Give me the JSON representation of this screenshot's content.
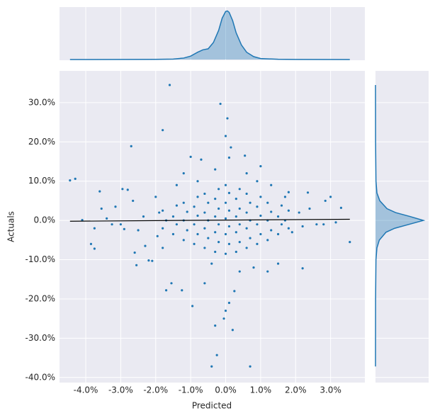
{
  "chart_data": {
    "type": "scatter",
    "xlabel": "Predicted",
    "ylabel": "Actuals",
    "xlim": [
      -4.75,
      3.98
    ],
    "ylim": [
      -41.3,
      38.1
    ],
    "xticks": [
      {
        "value": -4,
        "label": "-4.0%"
      },
      {
        "value": -3,
        "label": "-3.0%"
      },
      {
        "value": -2,
        "label": "-2.0%"
      },
      {
        "value": -1,
        "label": "-1.0%"
      },
      {
        "value": 0,
        "label": "0.0%"
      },
      {
        "value": 1,
        "label": "1.0%"
      },
      {
        "value": 2,
        "label": "2.0%"
      },
      {
        "value": 3,
        "label": "3.0%"
      }
    ],
    "yticks": [
      {
        "value": 30,
        "label": "30.0%"
      },
      {
        "value": 20,
        "label": "20.0%"
      },
      {
        "value": 10,
        "label": "10.0%"
      },
      {
        "value": 0,
        "label": "0.0%"
      },
      {
        "value": -10,
        "label": "-10.0%"
      },
      {
        "value": -20,
        "label": "-20.0%"
      },
      {
        "value": -30,
        "label": "-30.0%"
      },
      {
        "value": -40,
        "label": "-40.0%"
      }
    ],
    "grid": true,
    "color": "#1f77b4",
    "points": {
      "x": [
        -4.45,
        -4.3,
        -4.1,
        -3.85,
        -3.75,
        -3.75,
        -3.6,
        -3.55,
        -3.4,
        -3.25,
        -3.15,
        -3.0,
        -2.95,
        -2.8,
        -2.7,
        -2.65,
        -2.6,
        -2.55,
        -2.3,
        -2.2,
        -2.1,
        -2.0,
        -1.95,
        -1.8,
        -1.7,
        -1.6,
        -1.55,
        -1.25,
        -1.2,
        -1.0,
        -0.95,
        -0.7,
        -0.6,
        -0.4,
        -0.3,
        -0.4,
        -0.25,
        -0.15,
        -0.05,
        0.0,
        0.0,
        0.05,
        0.1,
        0.1,
        0.15,
        0.2,
        0.25,
        0.4,
        0.55,
        0.7,
        0.8,
        1.0,
        1.2,
        1.5,
        1.8,
        2.2,
        2.35,
        2.4,
        2.6,
        2.8,
        2.85,
        3.0,
        3.15,
        3.3,
        3.55,
        -2.5,
        -2.9,
        -2.35,
        -1.9,
        2.1,
        2.2,
        1.9,
        -1.8,
        1.7,
        -1.4,
        1.3,
        0.6,
        -0.3,
        -0.8,
        0.9,
        -1.8,
        -1.7,
        -1.8,
        -1.5,
        -1.4,
        -1.5,
        -1.4,
        -1.2,
        -1.1,
        -1.2,
        -1.1,
        -1.2,
        -0.9,
        -0.8,
        -0.9,
        -0.8,
        -0.9,
        -0.8,
        -0.6,
        -0.5,
        -0.6,
        -0.5,
        -0.6,
        -0.5,
        -0.6,
        -0.3,
        -0.2,
        -0.3,
        -0.2,
        -0.3,
        -0.2,
        -0.3,
        -0.2,
        0.0,
        0.1,
        0.0,
        0.1,
        0.0,
        0.1,
        0.0,
        0.1,
        0.0,
        0.3,
        0.4,
        0.3,
        0.4,
        0.3,
        0.4,
        0.3,
        0.4,
        0.6,
        0.7,
        0.6,
        0.7,
        0.6,
        0.7,
        0.6,
        0.9,
        1.0,
        0.9,
        1.0,
        0.9,
        1.0,
        1.2,
        1.3,
        1.2,
        1.3,
        1.2,
        1.5,
        1.6,
        1.5,
        1.6,
        1.8,
        1.7,
        1.8
      ],
      "y": [
        10.2,
        10.6,
        0.1,
        -6,
        -7.2,
        -2,
        7.4,
        3,
        0.5,
        -1,
        3.5,
        -1,
        8,
        7.8,
        18.9,
        5,
        -8.2,
        -11.4,
        -6.5,
        -10.2,
        -10.3,
        6,
        -4,
        23,
        -17.8,
        34.5,
        -16,
        -17.8,
        12,
        16.2,
        -21.8,
        15.5,
        -16,
        -11,
        -26.8,
        -37.2,
        -34.3,
        29.7,
        -25,
        21.5,
        -23,
        26,
        16,
        -21,
        18.6,
        -27.9,
        -18,
        -13,
        16.5,
        -37.2,
        -12,
        13.8,
        -13,
        -11,
        7.2,
        -12.2,
        7.1,
        3,
        -1,
        -1,
        5,
        6,
        -0.5,
        3.2,
        -5.5,
        -2.5,
        -2.2,
        1,
        2,
        2,
        -1.5,
        -3,
        -7,
        6,
        9,
        9,
        12,
        13,
        10,
        10,
        -2,
        0,
        2.5,
        -3.5,
        -1,
        1,
        3.8,
        -5,
        -2.5,
        0,
        2.2,
        4.5,
        -6,
        -3.5,
        -1,
        1.2,
        3.5,
        6,
        -7,
        -4.5,
        -2,
        0,
        2,
        4.5,
        6.8,
        -8,
        -5.5,
        -3,
        -1,
        1,
        3,
        5.5,
        8,
        -8.5,
        -6,
        -3.5,
        -1.5,
        0.5,
        2.5,
        4.5,
        7,
        9,
        -8,
        -5.5,
        -3,
        -1,
        1,
        3,
        5.5,
        8,
        -7,
        -4.5,
        -2,
        0,
        2,
        4.5,
        6.8,
        -6,
        -3.5,
        -1,
        1.2,
        3.5,
        6,
        -5,
        -2.5,
        0,
        2.2,
        4.5,
        -3.5,
        -1,
        1,
        3.8,
        -2,
        0,
        2.5
      ]
    },
    "fit_line": {
      "x": [
        -4.45,
        3.55
      ],
      "y": [
        -0.2,
        0.3
      ],
      "color": "#000000"
    },
    "x_kde": {
      "x": [
        -4.45,
        -2,
        -1.5,
        -1.2,
        -1,
        -0.8,
        -0.65,
        -0.5,
        -0.35,
        -0.2,
        -0.1,
        0,
        0.05,
        0.1,
        0.2,
        0.3,
        0.45,
        0.6,
        0.8,
        1.0,
        1.5,
        2,
        3.55
      ],
      "density": [
        0,
        0.003,
        0.01,
        0.03,
        0.07,
        0.15,
        0.2,
        0.22,
        0.35,
        0.6,
        0.85,
        0.99,
        1.0,
        0.97,
        0.8,
        0.55,
        0.3,
        0.15,
        0.06,
        0.02,
        0.005,
        0.002,
        0
      ],
      "lim": [
        0,
        1.05
      ]
    },
    "y_kde": {
      "y": [
        -37.2,
        -20,
        -10,
        -7,
        -5,
        -3,
        -2,
        -1,
        0,
        1,
        2,
        3,
        5,
        7,
        10,
        20,
        34.5
      ],
      "density": [
        0,
        0.002,
        0.01,
        0.03,
        0.08,
        0.22,
        0.4,
        0.7,
        1.0,
        0.72,
        0.42,
        0.24,
        0.09,
        0.03,
        0.01,
        0.002,
        0
      ],
      "lim": [
        0,
        1.08
      ]
    }
  }
}
